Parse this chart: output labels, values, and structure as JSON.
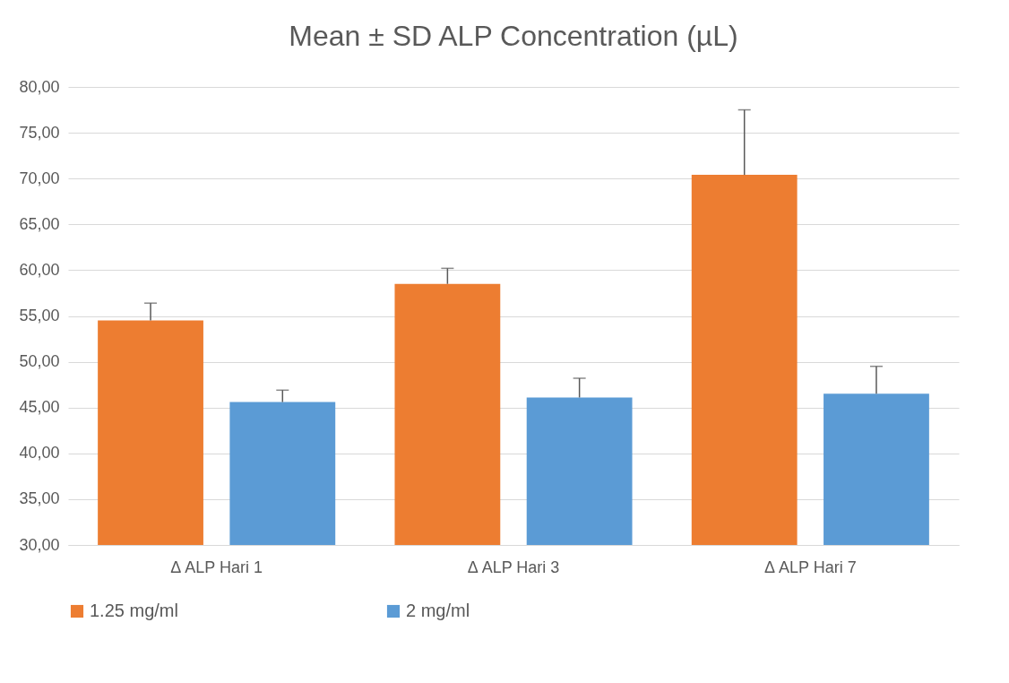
{
  "chart_data": {
    "type": "bar",
    "title": "Mean ± SD ALP Concentration (µL)",
    "categories": [
      "Δ ALP Hari 1",
      "Δ ALP Hari 3",
      "Δ ALP Hari 7"
    ],
    "series": [
      {
        "name": "1.25 mg/ml",
        "color": "#ed7d31",
        "values": [
          54.5,
          58.5,
          70.4
        ],
        "errors": [
          [
            54.5,
            56.4
          ],
          [
            58.5,
            60.2
          ],
          [
            70.4,
            77.5
          ]
        ]
      },
      {
        "name": "2 mg/ml",
        "color": "#5b9bd5",
        "values": [
          45.6,
          46.1,
          46.5
        ],
        "errors": [
          [
            45.6,
            46.9
          ],
          [
            46.1,
            48.2
          ],
          [
            46.5,
            49.5
          ]
        ]
      }
    ],
    "ylim": [
      30,
      80
    ],
    "yticks": [
      {
        "value": 30,
        "label": "30,00"
      },
      {
        "value": 35,
        "label": "35,00"
      },
      {
        "value": 40,
        "label": "40,00"
      },
      {
        "value": 45,
        "label": "45,00"
      },
      {
        "value": 50,
        "label": "50,00"
      },
      {
        "value": 55,
        "label": "55,00"
      },
      {
        "value": 60,
        "label": "60,00"
      },
      {
        "value": 65,
        "label": "65,00"
      },
      {
        "value": 70,
        "label": "70,00"
      },
      {
        "value": 75,
        "label": "75,00"
      },
      {
        "value": 80,
        "label": "80,00"
      }
    ],
    "grid": "y",
    "legend": "bottom"
  }
}
